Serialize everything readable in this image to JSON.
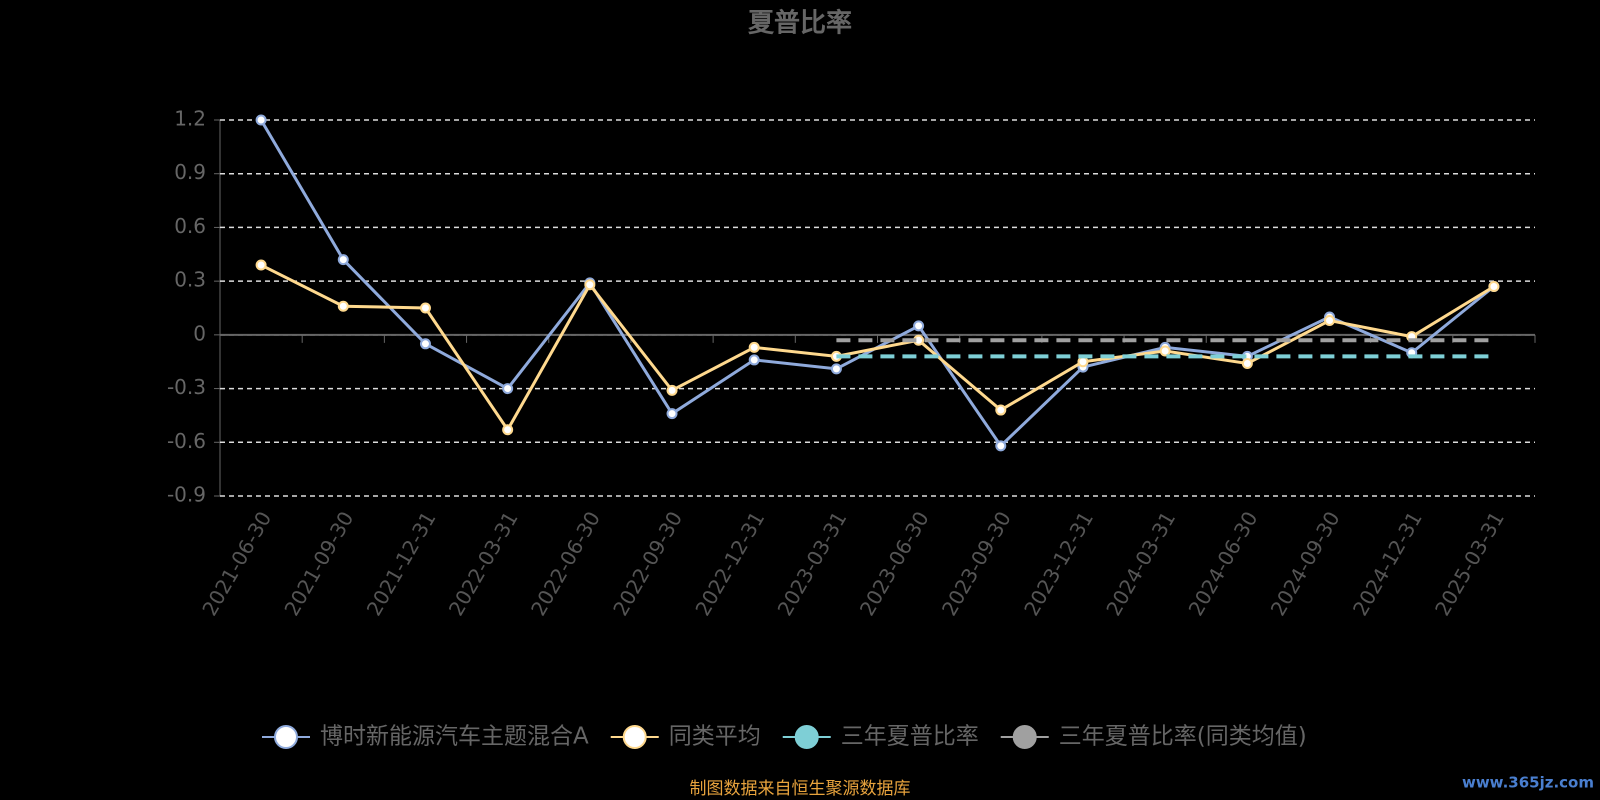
{
  "chart_data": {
    "type": "line",
    "title": "夏普比率",
    "categories": [
      "2021-06-30",
      "2021-09-30",
      "2021-12-31",
      "2022-03-31",
      "2022-06-30",
      "2022-09-30",
      "2022-12-31",
      "2023-03-31",
      "2023-06-30",
      "2023-09-30",
      "2023-12-31",
      "2024-03-31",
      "2024-06-30",
      "2024-09-30",
      "2024-12-31",
      "2025-03-31"
    ],
    "series": [
      {
        "name": "博时新能源汽车主题混合A",
        "color": "#8faadc",
        "style": "line",
        "values": [
          1.2,
          0.42,
          -0.05,
          -0.3,
          0.29,
          -0.44,
          -0.14,
          -0.19,
          0.05,
          -0.62,
          -0.18,
          -0.07,
          -0.12,
          0.1,
          -0.1,
          0.27
        ]
      },
      {
        "name": "同类平均",
        "color": "#ffd98e",
        "style": "line",
        "values": [
          0.39,
          0.16,
          0.15,
          -0.53,
          0.28,
          -0.31,
          -0.07,
          -0.12,
          -0.03,
          -0.42,
          -0.15,
          -0.09,
          -0.16,
          0.08,
          -0.01,
          0.27
        ]
      },
      {
        "name": "三年夏普比率",
        "color": "#7ecfd6",
        "style": "dashed",
        "values": [
          null,
          null,
          null,
          null,
          null,
          null,
          null,
          -0.12,
          -0.12,
          -0.12,
          -0.12,
          -0.12,
          -0.12,
          -0.12,
          -0.12,
          -0.12
        ]
      },
      {
        "name": "三年夏普比率(同类均值)",
        "color": "#a0a0a0",
        "style": "dashed",
        "values": [
          null,
          null,
          null,
          null,
          null,
          null,
          null,
          -0.03,
          -0.03,
          -0.03,
          -0.03,
          -0.03,
          -0.03,
          -0.03,
          -0.03,
          -0.03
        ]
      }
    ],
    "ylim": [
      -0.9,
      1.2
    ],
    "yticks": [
      -0.9,
      -0.6,
      -0.3,
      0,
      0.3,
      0.6,
      0.9,
      1.2
    ],
    "grid": true,
    "legend": "bottom",
    "source": "制图数据来自恒生聚源数据库",
    "watermark": "www.365jz.com"
  }
}
